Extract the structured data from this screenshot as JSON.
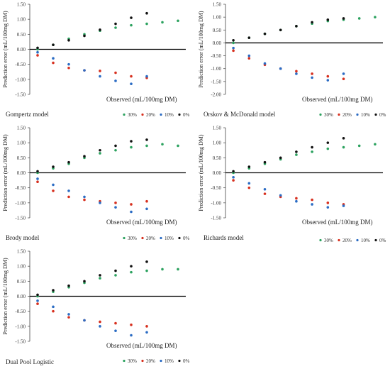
{
  "colors": {
    "series_30": "#2ca25f",
    "series_20": "#d7301f",
    "series_10": "#2b6cc4",
    "series_0": "#111111",
    "zero_line": "#000000",
    "axis": "#444444"
  },
  "chart_data": [
    {
      "type": "scatter",
      "title": "Gompertz model",
      "xlabel": "Observed (mL/100mg DM)",
      "ylabel": "Prediction error (mL/100mg DM)",
      "ylim": [
        -1.5,
        1.5
      ],
      "yticks": [
        "1.50",
        "1.00",
        "0.50",
        "0.00",
        "-0.50",
        "-1.00",
        "-1.50"
      ],
      "legend_position": "bottom",
      "legend": [
        "30%",
        "20%",
        "10%",
        "0%"
      ],
      "series": [
        {
          "name": "30%",
          "x": [
            5,
            15,
            25,
            35,
            45,
            55,
            65,
            75,
            85,
            95
          ],
          "y": [
            0.0,
            0.15,
            0.35,
            0.5,
            0.62,
            0.72,
            0.8,
            0.85,
            0.9,
            0.95
          ]
        },
        {
          "name": "20%",
          "x": [
            5,
            15,
            25,
            35,
            45,
            55,
            65,
            75
          ],
          "y": [
            -0.2,
            -0.45,
            -0.62,
            -0.7,
            -0.72,
            -0.78,
            -0.9,
            -0.95
          ]
        },
        {
          "name": "10%",
          "x": [
            5,
            15,
            25,
            35,
            45,
            55,
            65,
            75
          ],
          "y": [
            -0.1,
            -0.3,
            -0.5,
            -0.7,
            -0.9,
            -1.05,
            -1.15,
            -0.9
          ]
        },
        {
          "name": "0%",
          "x": [
            5,
            15,
            25,
            35,
            45,
            55,
            65,
            75
          ],
          "y": [
            0.05,
            0.15,
            0.3,
            0.45,
            0.65,
            0.85,
            1.05,
            1.2
          ]
        }
      ]
    },
    {
      "type": "scatter",
      "title": "Orskov & McDonald model",
      "xlabel": "Observed (mL/100mg DM)",
      "ylabel": "Prediction error (mL/100mg DM)",
      "ylim": [
        -2.0,
        1.5
      ],
      "yticks": [
        "1.50",
        "1.00",
        "0.50",
        "0.00",
        "-0.50",
        "-1.00",
        "-1.50",
        "-2.00"
      ],
      "legend_position": "bottom",
      "legend": [
        "30%",
        "20%",
        "10%",
        "0%"
      ],
      "series": [
        {
          "name": "30%",
          "x": [
            5,
            15,
            25,
            35,
            45,
            55,
            65,
            75,
            85,
            95
          ],
          "y": [
            0.0,
            0.2,
            0.35,
            0.5,
            0.65,
            0.75,
            0.85,
            0.9,
            0.95,
            1.0
          ]
        },
        {
          "name": "20%",
          "x": [
            5,
            15,
            25,
            35,
            45,
            55,
            65,
            75
          ],
          "y": [
            -0.3,
            -0.6,
            -0.85,
            -1.0,
            -1.1,
            -1.2,
            -1.3,
            -1.4
          ]
        },
        {
          "name": "10%",
          "x": [
            5,
            15,
            25,
            35,
            45,
            55,
            65,
            75
          ],
          "y": [
            -0.2,
            -0.5,
            -0.8,
            -1.0,
            -1.2,
            -1.35,
            -1.45,
            -1.2
          ]
        },
        {
          "name": "0%",
          "x": [
            5,
            15,
            25,
            35,
            45,
            55,
            65,
            75
          ],
          "y": [
            0.1,
            0.2,
            0.35,
            0.5,
            0.65,
            0.8,
            0.9,
            0.95
          ]
        }
      ]
    },
    {
      "type": "scatter",
      "title": "Brody model",
      "xlabel": "Observed (mL/100mg DM)",
      "ylabel": "Prediction error (mL/100mg DM)",
      "ylim": [
        -1.5,
        1.5
      ],
      "yticks": [
        "1.50",
        "1.00",
        "0.50",
        "0.00",
        "-0.50",
        "-1.00",
        "-1.50"
      ],
      "legend_position": "bottom",
      "legend": [
        "30%",
        "20%",
        "10%",
        "0%"
      ],
      "series": [
        {
          "name": "30%",
          "x": [
            5,
            15,
            25,
            35,
            45,
            55,
            65,
            75,
            85,
            95
          ],
          "y": [
            0.0,
            0.15,
            0.3,
            0.5,
            0.65,
            0.75,
            0.85,
            0.9,
            0.95,
            0.9
          ]
        },
        {
          "name": "20%",
          "x": [
            5,
            15,
            25,
            35,
            45,
            55,
            65,
            75
          ],
          "y": [
            -0.3,
            -0.6,
            -0.8,
            -0.9,
            -0.95,
            -1.0,
            -1.05,
            -0.95
          ]
        },
        {
          "name": "10%",
          "x": [
            5,
            15,
            25,
            35,
            45,
            55,
            65,
            75
          ],
          "y": [
            -0.2,
            -0.4,
            -0.6,
            -0.8,
            -1.0,
            -1.15,
            -1.3,
            -1.2
          ]
        },
        {
          "name": "0%",
          "x": [
            5,
            15,
            25,
            35,
            45,
            55,
            65,
            75
          ],
          "y": [
            0.05,
            0.2,
            0.35,
            0.55,
            0.75,
            0.9,
            1.05,
            1.1
          ]
        }
      ]
    },
    {
      "type": "scatter",
      "title": "Richards model",
      "xlabel": "Observed (mL/100mg DM)",
      "ylabel": "Prediction error (mL/100mg DM)",
      "ylim": [
        -1.5,
        1.5
      ],
      "yticks": [
        "1.50",
        "1.00",
        "0.50",
        "0.00",
        "-0.50",
        "-1.00",
        "-1.50"
      ],
      "legend_position": "bottom",
      "legend": [
        "30%",
        "20%",
        "10%",
        "0%"
      ],
      "series": [
        {
          "name": "30%",
          "x": [
            5,
            15,
            25,
            35,
            45,
            55,
            65,
            75,
            85,
            95
          ],
          "y": [
            0.0,
            0.15,
            0.3,
            0.45,
            0.6,
            0.7,
            0.8,
            0.85,
            0.9,
            0.95
          ]
        },
        {
          "name": "20%",
          "x": [
            5,
            15,
            25,
            35,
            45,
            55,
            65,
            75
          ],
          "y": [
            -0.25,
            -0.5,
            -0.7,
            -0.8,
            -0.85,
            -0.9,
            -1.0,
            -1.05
          ]
        },
        {
          "name": "10%",
          "x": [
            5,
            15,
            25,
            35,
            45,
            55,
            65,
            75
          ],
          "y": [
            -0.15,
            -0.35,
            -0.55,
            -0.75,
            -0.95,
            -1.05,
            -1.15,
            -1.1
          ]
        },
        {
          "name": "0%",
          "x": [
            5,
            15,
            25,
            35,
            45,
            55,
            65,
            75
          ],
          "y": [
            0.05,
            0.2,
            0.35,
            0.5,
            0.7,
            0.85,
            1.0,
            1.15
          ]
        }
      ]
    },
    {
      "type": "scatter",
      "title": "Dual Pool Logistic",
      "xlabel": "Observed (mL/100mg DM)",
      "ylabel": "Prediction error (mL/100mg DM)",
      "ylim": [
        -1.5,
        1.5
      ],
      "yticks": [
        "1.50",
        "1.00",
        "0.50",
        "0.00",
        "-0.50",
        "-1.00",
        "-1.50"
      ],
      "legend_position": "bottom",
      "legend": [
        "30%",
        "20%",
        "10%",
        "0%"
      ],
      "series": [
        {
          "name": "30%",
          "x": [
            5,
            15,
            25,
            35,
            45,
            55,
            65,
            75,
            85,
            95
          ],
          "y": [
            0.0,
            0.15,
            0.3,
            0.45,
            0.6,
            0.7,
            0.8,
            0.85,
            0.9,
            0.9
          ]
        },
        {
          "name": "20%",
          "x": [
            5,
            15,
            25,
            35,
            45,
            55,
            65,
            75
          ],
          "y": [
            -0.25,
            -0.5,
            -0.7,
            -0.8,
            -0.85,
            -0.9,
            -0.95,
            -1.0
          ]
        },
        {
          "name": "10%",
          "x": [
            5,
            15,
            25,
            35,
            45,
            55,
            65,
            75
          ],
          "y": [
            -0.15,
            -0.35,
            -0.6,
            -0.8,
            -1.0,
            -1.15,
            -1.3,
            -1.2
          ]
        },
        {
          "name": "0%",
          "x": [
            5,
            15,
            25,
            35,
            45,
            55,
            65,
            75
          ],
          "y": [
            0.05,
            0.2,
            0.35,
            0.5,
            0.7,
            0.85,
            1.0,
            1.15
          ]
        }
      ]
    }
  ]
}
